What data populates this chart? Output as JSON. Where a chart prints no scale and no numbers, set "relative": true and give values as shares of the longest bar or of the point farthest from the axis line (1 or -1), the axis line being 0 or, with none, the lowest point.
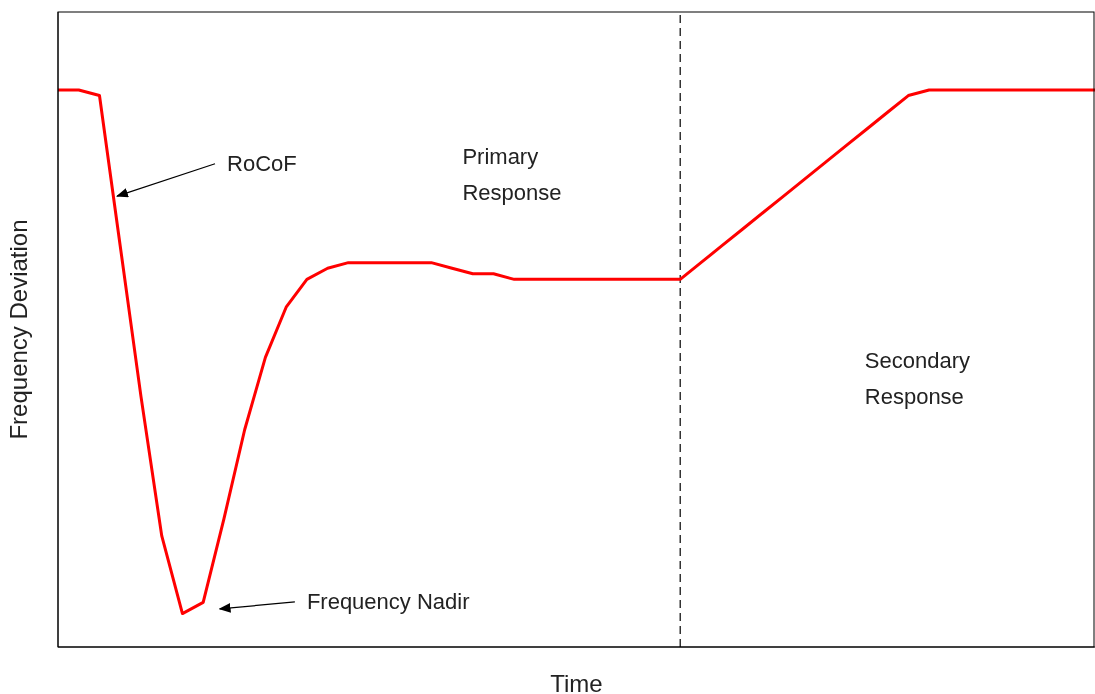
{
  "chart_data": {
    "type": "line",
    "relative": true,
    "xlabel": "Time",
    "ylabel": "Frequency Deviation",
    "categories": [
      null,
      null,
      null,
      null,
      null,
      null,
      null,
      null,
      null,
      null,
      null,
      null,
      null,
      null,
      null,
      null,
      null,
      null,
      null,
      null,
      null,
      null,
      null,
      null,
      null,
      null,
      null,
      null,
      null,
      null,
      null,
      null,
      null,
      null,
      null,
      null,
      null,
      null,
      null,
      null,
      null,
      null,
      null,
      null,
      null,
      null,
      null,
      null,
      null,
      null,
      null
    ],
    "series": [
      {
        "color": "#ff0000",
        "values": [
          1,
          1,
          0.99,
          0.72,
          0.45,
          0.2,
          0.06,
          0.08,
          0.23,
          0.39,
          0.52,
          0.61,
          0.66,
          0.68,
          0.69,
          0.69,
          0.69,
          0.69,
          0.69,
          0.68,
          0.67,
          0.67,
          0.66,
          0.66,
          0.66,
          0.66,
          0.66,
          0.66,
          0.66,
          0.66,
          0.66,
          0.69,
          0.72,
          0.75,
          0.78,
          0.81,
          0.84,
          0.87,
          0.9,
          0.93,
          0.96,
          0.99,
          1,
          1,
          1,
          1,
          1,
          1,
          1,
          1,
          1
        ]
      }
    ],
    "marker": "none",
    "line_style": "solid",
    "ref_lines": [
      {
        "axis": "x",
        "color": "#000000",
        "line_style": "dashed"
      }
    ],
    "annotations": [
      "RoCoF",
      "Frequency Nadir",
      "Primary Response",
      "Secondary Response"
    ]
  }
}
